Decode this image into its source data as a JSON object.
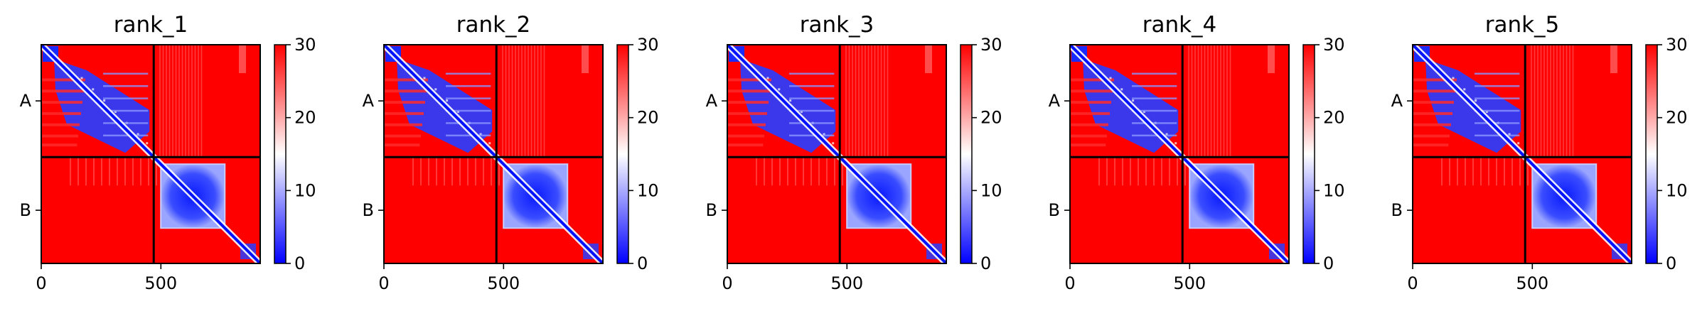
{
  "chart_data": [
    {
      "type": "heatmap",
      "title": "rank_1",
      "chains": [
        "A",
        "B"
      ],
      "chain_boundary": 470,
      "x_ticks": [
        0,
        500
      ],
      "x_range": [
        0,
        915
      ],
      "colorbar": {
        "ticks": [
          0,
          10,
          20,
          30
        ],
        "range": [
          0,
          30
        ],
        "colormap": "bwr"
      }
    },
    {
      "type": "heatmap",
      "title": "rank_2",
      "chains": [
        "A",
        "B"
      ],
      "chain_boundary": 470,
      "x_ticks": [
        0,
        500
      ],
      "x_range": [
        0,
        915
      ],
      "colorbar": {
        "ticks": [
          0,
          10,
          20,
          30
        ],
        "range": [
          0,
          30
        ],
        "colormap": "bwr"
      }
    },
    {
      "type": "heatmap",
      "title": "rank_3",
      "chains": [
        "A",
        "B"
      ],
      "chain_boundary": 470,
      "x_ticks": [
        0,
        500
      ],
      "x_range": [
        0,
        915
      ],
      "colorbar": {
        "ticks": [
          0,
          10,
          20,
          30
        ],
        "range": [
          0,
          30
        ],
        "colormap": "bwr"
      }
    },
    {
      "type": "heatmap",
      "title": "rank_4",
      "chains": [
        "A",
        "B"
      ],
      "chain_boundary": 470,
      "x_ticks": [
        0,
        500
      ],
      "x_range": [
        0,
        915
      ],
      "colorbar": {
        "ticks": [
          0,
          10,
          20,
          30
        ],
        "range": [
          0,
          30
        ],
        "colormap": "bwr"
      }
    },
    {
      "type": "heatmap",
      "title": "rank_5",
      "chains": [
        "A",
        "B"
      ],
      "chain_boundary": 470,
      "x_ticks": [
        0,
        500
      ],
      "x_range": [
        0,
        915
      ],
      "colorbar": {
        "ticks": [
          0,
          10,
          20,
          30
        ],
        "range": [
          0,
          30
        ],
        "colormap": "bwr"
      }
    }
  ],
  "colors": {
    "high": "#ff0000",
    "mid": "#ffffff",
    "low": "#0000ff",
    "frame": "#000000"
  }
}
